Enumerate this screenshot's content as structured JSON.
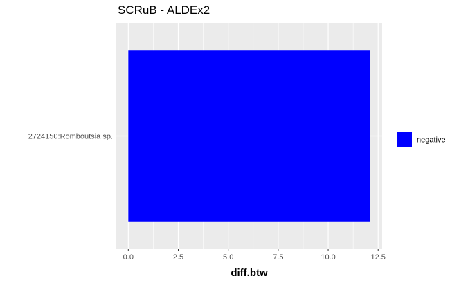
{
  "chart_data": {
    "type": "bar",
    "orientation": "horizontal",
    "title": "SCRuB - ALDEx2",
    "xlabel": "diff.btw",
    "ylabel": "",
    "categories": [
      "2724150:Romboutsia sp."
    ],
    "series": [
      {
        "name": "negative",
        "values": [
          12.1
        ],
        "color": "#0000FF"
      }
    ],
    "xlim": [
      -0.6,
      12.7
    ],
    "x_ticks": [
      0.0,
      2.5,
      5.0,
      7.5,
      10.0,
      12.5
    ],
    "x_tick_labels": [
      "0.0",
      "2.5",
      "5.0",
      "7.5",
      "10.0",
      "12.5"
    ],
    "grid": true,
    "panel_background": "#EBEBEB",
    "grid_color": "#FFFFFF",
    "legend": {
      "position": "right",
      "entries": [
        {
          "label": "negative",
          "color": "#0000FF"
        }
      ]
    }
  }
}
